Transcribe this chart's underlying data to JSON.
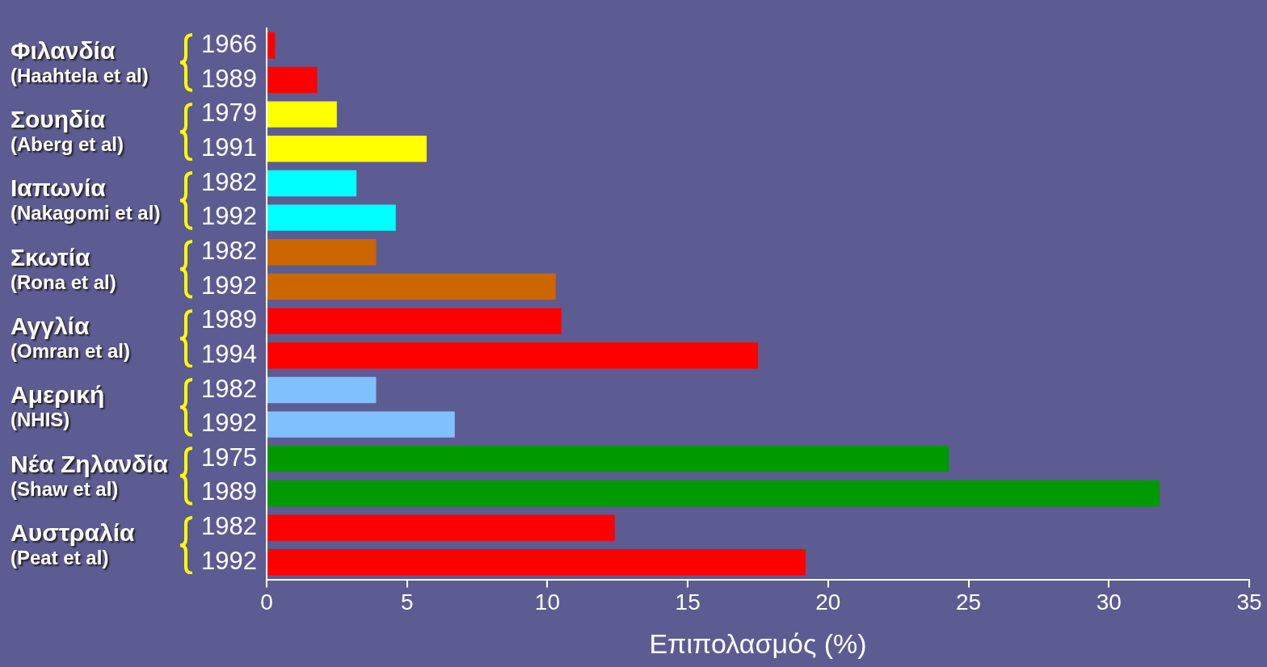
{
  "chart_data": {
    "type": "bar",
    "orientation": "horizontal",
    "xlabel": "Επιπολασμός (%)",
    "categories": [
      "1966",
      "1989",
      "1979",
      "1991",
      "1982",
      "1992",
      "1982",
      "1992",
      "1989",
      "1994",
      "1982",
      "1992",
      "1975",
      "1989",
      "1982",
      "1992"
    ],
    "values": [
      0.3,
      1.8,
      2.5,
      5.7,
      3.2,
      4.6,
      3.9,
      10.3,
      10.5,
      17.5,
      3.9,
      6.7,
      24.3,
      31.8,
      12.4,
      19.2
    ],
    "colors": [
      "#ff0000",
      "#ff0000",
      "#ffff00",
      "#ffff00",
      "#00ffff",
      "#00ffff",
      "#cc6600",
      "#cc6600",
      "#ff0000",
      "#ff0000",
      "#80c0ff",
      "#80c0ff",
      "#009900",
      "#009900",
      "#ff0000",
      "#ff0000"
    ],
    "xlim": [
      0,
      35
    ],
    "xticks": [
      0,
      5,
      10,
      15,
      20,
      25,
      30,
      35
    ],
    "annotations": [
      "Φιλανδία\n(Haahtela et al)",
      "Σουηδία\n(Aberg et al)",
      "Ιαπωνία\n(Nakagomi et al)",
      "Σκωτία\n(Rona et al)",
      "Αγγλία\n(Omran et al)",
      "Αμερική\n(NHIS)",
      "Νέα Ζηλανδία\n(Shaw et al)",
      "Αυστραλία\n(Peat et al)"
    ]
  }
}
